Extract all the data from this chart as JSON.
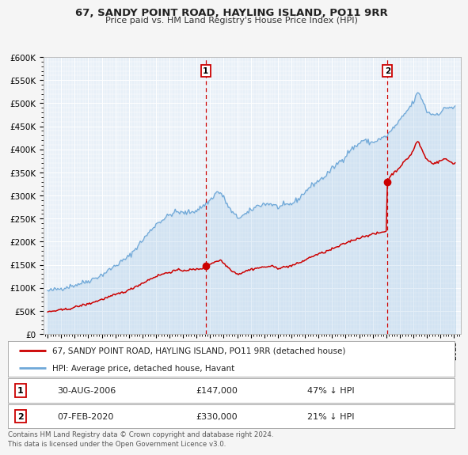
{
  "title": "67, SANDY POINT ROAD, HAYLING ISLAND, PO11 9RR",
  "subtitle": "Price paid vs. HM Land Registry's House Price Index (HPI)",
  "legend_line1": "67, SANDY POINT ROAD, HAYLING ISLAND, PO11 9RR (detached house)",
  "legend_line2": "HPI: Average price, detached house, Havant",
  "transaction1_date": "30-AUG-2006",
  "transaction1_price": 147000,
  "transaction1_price_str": "£147,000",
  "transaction1_hpi": "47% ↓ HPI",
  "transaction2_date": "07-FEB-2020",
  "transaction2_price": 330000,
  "transaction2_price_str": "£330,000",
  "transaction2_hpi": "21% ↓ HPI",
  "footer": "Contains HM Land Registry data © Crown copyright and database right 2024.\nThis data is licensed under the Open Government Licence v3.0.",
  "hpi_color": "#6fa8d8",
  "price_color": "#cc0000",
  "fig_bg": "#f5f5f5",
  "plot_bg": "#e8f0f8",
  "grid_color": "#ffffff",
  "dashed_line_color": "#cc0000",
  "ylim": [
    0,
    600000
  ],
  "yticks": [
    0,
    50000,
    100000,
    150000,
    200000,
    250000,
    300000,
    350000,
    400000,
    450000,
    500000,
    550000,
    600000
  ],
  "xstart_year": 1995,
  "xend_year": 2025,
  "transaction1_x": 2006.67,
  "transaction2_x": 2020.09
}
